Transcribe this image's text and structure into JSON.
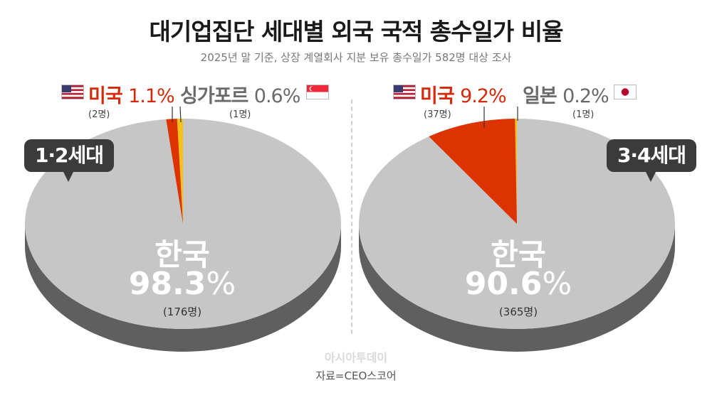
{
  "title": "대기업집단 세대별 외국 국적 총수일가 비율",
  "subtitle": "2025년 말 기준, 상장 계열회사 지분 보유 총수일가 582명 대상 조사",
  "logo": "아시아투데이",
  "source": "자료=CEO스코어",
  "colors": {
    "korea": "#c6c6c6",
    "korea_side": "#5f5f5f",
    "usa": "#dd3300",
    "minor": "#f5c21b",
    "callout": "#3b3b3b"
  },
  "chart_data": [
    {
      "type": "pie",
      "title": "",
      "group": "1·2세대",
      "slices": [
        {
          "name": "한국",
          "value": 98.3,
          "value_label": "98.3",
          "count": "(176명)",
          "flag_icon": ""
        },
        {
          "name": "미국",
          "value": 1.1,
          "value_label": "1.1",
          "count": "(2명)",
          "flag_icon": "us-flag-icon"
        },
        {
          "name": "싱가포르",
          "value": 0.6,
          "value_label": "0.6",
          "count": "(1명)",
          "flag_icon": "singapore-flag-icon"
        }
      ]
    },
    {
      "type": "pie",
      "title": "",
      "group": "3·4세대",
      "slices": [
        {
          "name": "한국",
          "value": 90.6,
          "value_label": "90.6",
          "count": "(365명)",
          "flag_icon": ""
        },
        {
          "name": "미국",
          "value": 9.2,
          "value_label": "9.2",
          "count": "(37명)",
          "flag_icon": "us-flag-icon"
        },
        {
          "name": "일본",
          "value": 0.2,
          "value_label": "0.2",
          "count": "(1명)",
          "flag_icon": "japan-flag-icon"
        }
      ]
    }
  ]
}
